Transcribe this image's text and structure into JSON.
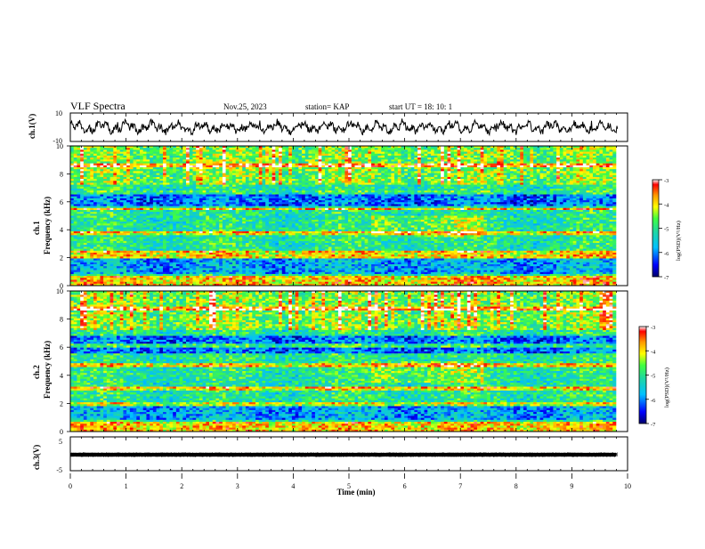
{
  "header": {
    "title": "VLF Spectra",
    "date": "Nov.25, 2023",
    "station": "station= KAP",
    "start_ut": "start  UT =   18: 10: 1"
  },
  "panels": {
    "ch1": {
      "ylabel": "ch.1(V)",
      "ticks": [
        "10",
        "-10"
      ]
    },
    "spec1": {
      "ylabel_line1": "ch.1",
      "ylabel_line2": "Frequency (kHz)",
      "yticks": [
        "0",
        "2",
        "4",
        "6",
        "8",
        "10"
      ],
      "colorbar_label": "log(PSD)(V²/Hz)",
      "colorbar_ticks": [
        "-3",
        "-4",
        "-5",
        "-6",
        "-7"
      ]
    },
    "spec2": {
      "ylabel_line1": "ch.2",
      "ylabel_line2": "Frequency (kHz)",
      "yticks": [
        "0",
        "2",
        "4",
        "6",
        "8",
        "10"
      ],
      "colorbar_label": "log(PSD)(V²/Hz)",
      "colorbar_ticks": [
        "-3",
        "-4",
        "-5",
        "-6",
        "-7"
      ]
    },
    "ch3": {
      "ylabel": "ch.3(V)",
      "ticks": [
        "5",
        "-5"
      ]
    }
  },
  "xaxis": {
    "label": "Time (min)",
    "ticks": [
      "0",
      "1",
      "2",
      "3",
      "4",
      "5",
      "6",
      "7",
      "8",
      "9",
      "10"
    ]
  },
  "chart_data": [
    {
      "type": "line",
      "name": "ch.1 waveform",
      "xlabel": "Time (min)",
      "ylabel": "ch.1(V)",
      "xlim": [
        0,
        10
      ],
      "ylim": [
        -10,
        10
      ],
      "x_extent": [
        0,
        9.82
      ],
      "note": "noisy broadband waveform, roughly within -5 to 5 V"
    },
    {
      "type": "heatmap",
      "name": "ch.1 spectrogram",
      "xlabel": "Time (min)",
      "ylabel": "Frequency (kHz)",
      "xlim": [
        0,
        10
      ],
      "ylim": [
        0,
        10
      ],
      "x_extent": [
        0,
        9.82
      ],
      "colorbar": {
        "label": "log(PSD)(V²/Hz)",
        "range": [
          -7,
          -3
        ],
        "colormap": [
          "#00006a",
          "#0000ff",
          "#00c0ff",
          "#20d8a0",
          "#40ff40",
          "#ffff00",
          "#ff9900",
          "#ff0000",
          "#ffffff"
        ]
      },
      "features": {
        "high_power_bands_khz": [
          2.1,
          2.4,
          3.8,
          5.5,
          6.7,
          8.6
        ],
        "low_frequency_strong_band_khz": [
          0,
          0.8
        ],
        "sferics_vertical_streaks": true
      }
    },
    {
      "type": "heatmap",
      "name": "ch.2 spectrogram",
      "xlabel": "Time (min)",
      "ylabel": "Frequency (kHz)",
      "xlim": [
        0,
        10
      ],
      "ylim": [
        0,
        10
      ],
      "x_extent": [
        0,
        9.82
      ],
      "colorbar": {
        "label": "log(PSD)(V²/Hz)",
        "range": [
          -7,
          -3
        ],
        "colormap": [
          "#00006a",
          "#0000ff",
          "#00c0ff",
          "#20d8a0",
          "#40ff40",
          "#ffff00",
          "#ff9900",
          "#ff0000",
          "#ffffff"
        ]
      },
      "features": {
        "high_power_bands_khz": [
          1.9,
          3.1,
          4.7,
          6.1,
          8.7
        ],
        "low_frequency_strong_band_khz": [
          0,
          0.6
        ],
        "sferics_vertical_streaks": true
      }
    },
    {
      "type": "line",
      "name": "ch.3 waveform",
      "xlabel": "Time (min)",
      "ylabel": "ch.3(V)",
      "xlim": [
        0,
        10
      ],
      "ylim": [
        -5,
        5
      ],
      "x_extent": [
        0,
        9.82
      ],
      "baseline_v": 0,
      "amplitude_v": 0.35
    }
  ]
}
